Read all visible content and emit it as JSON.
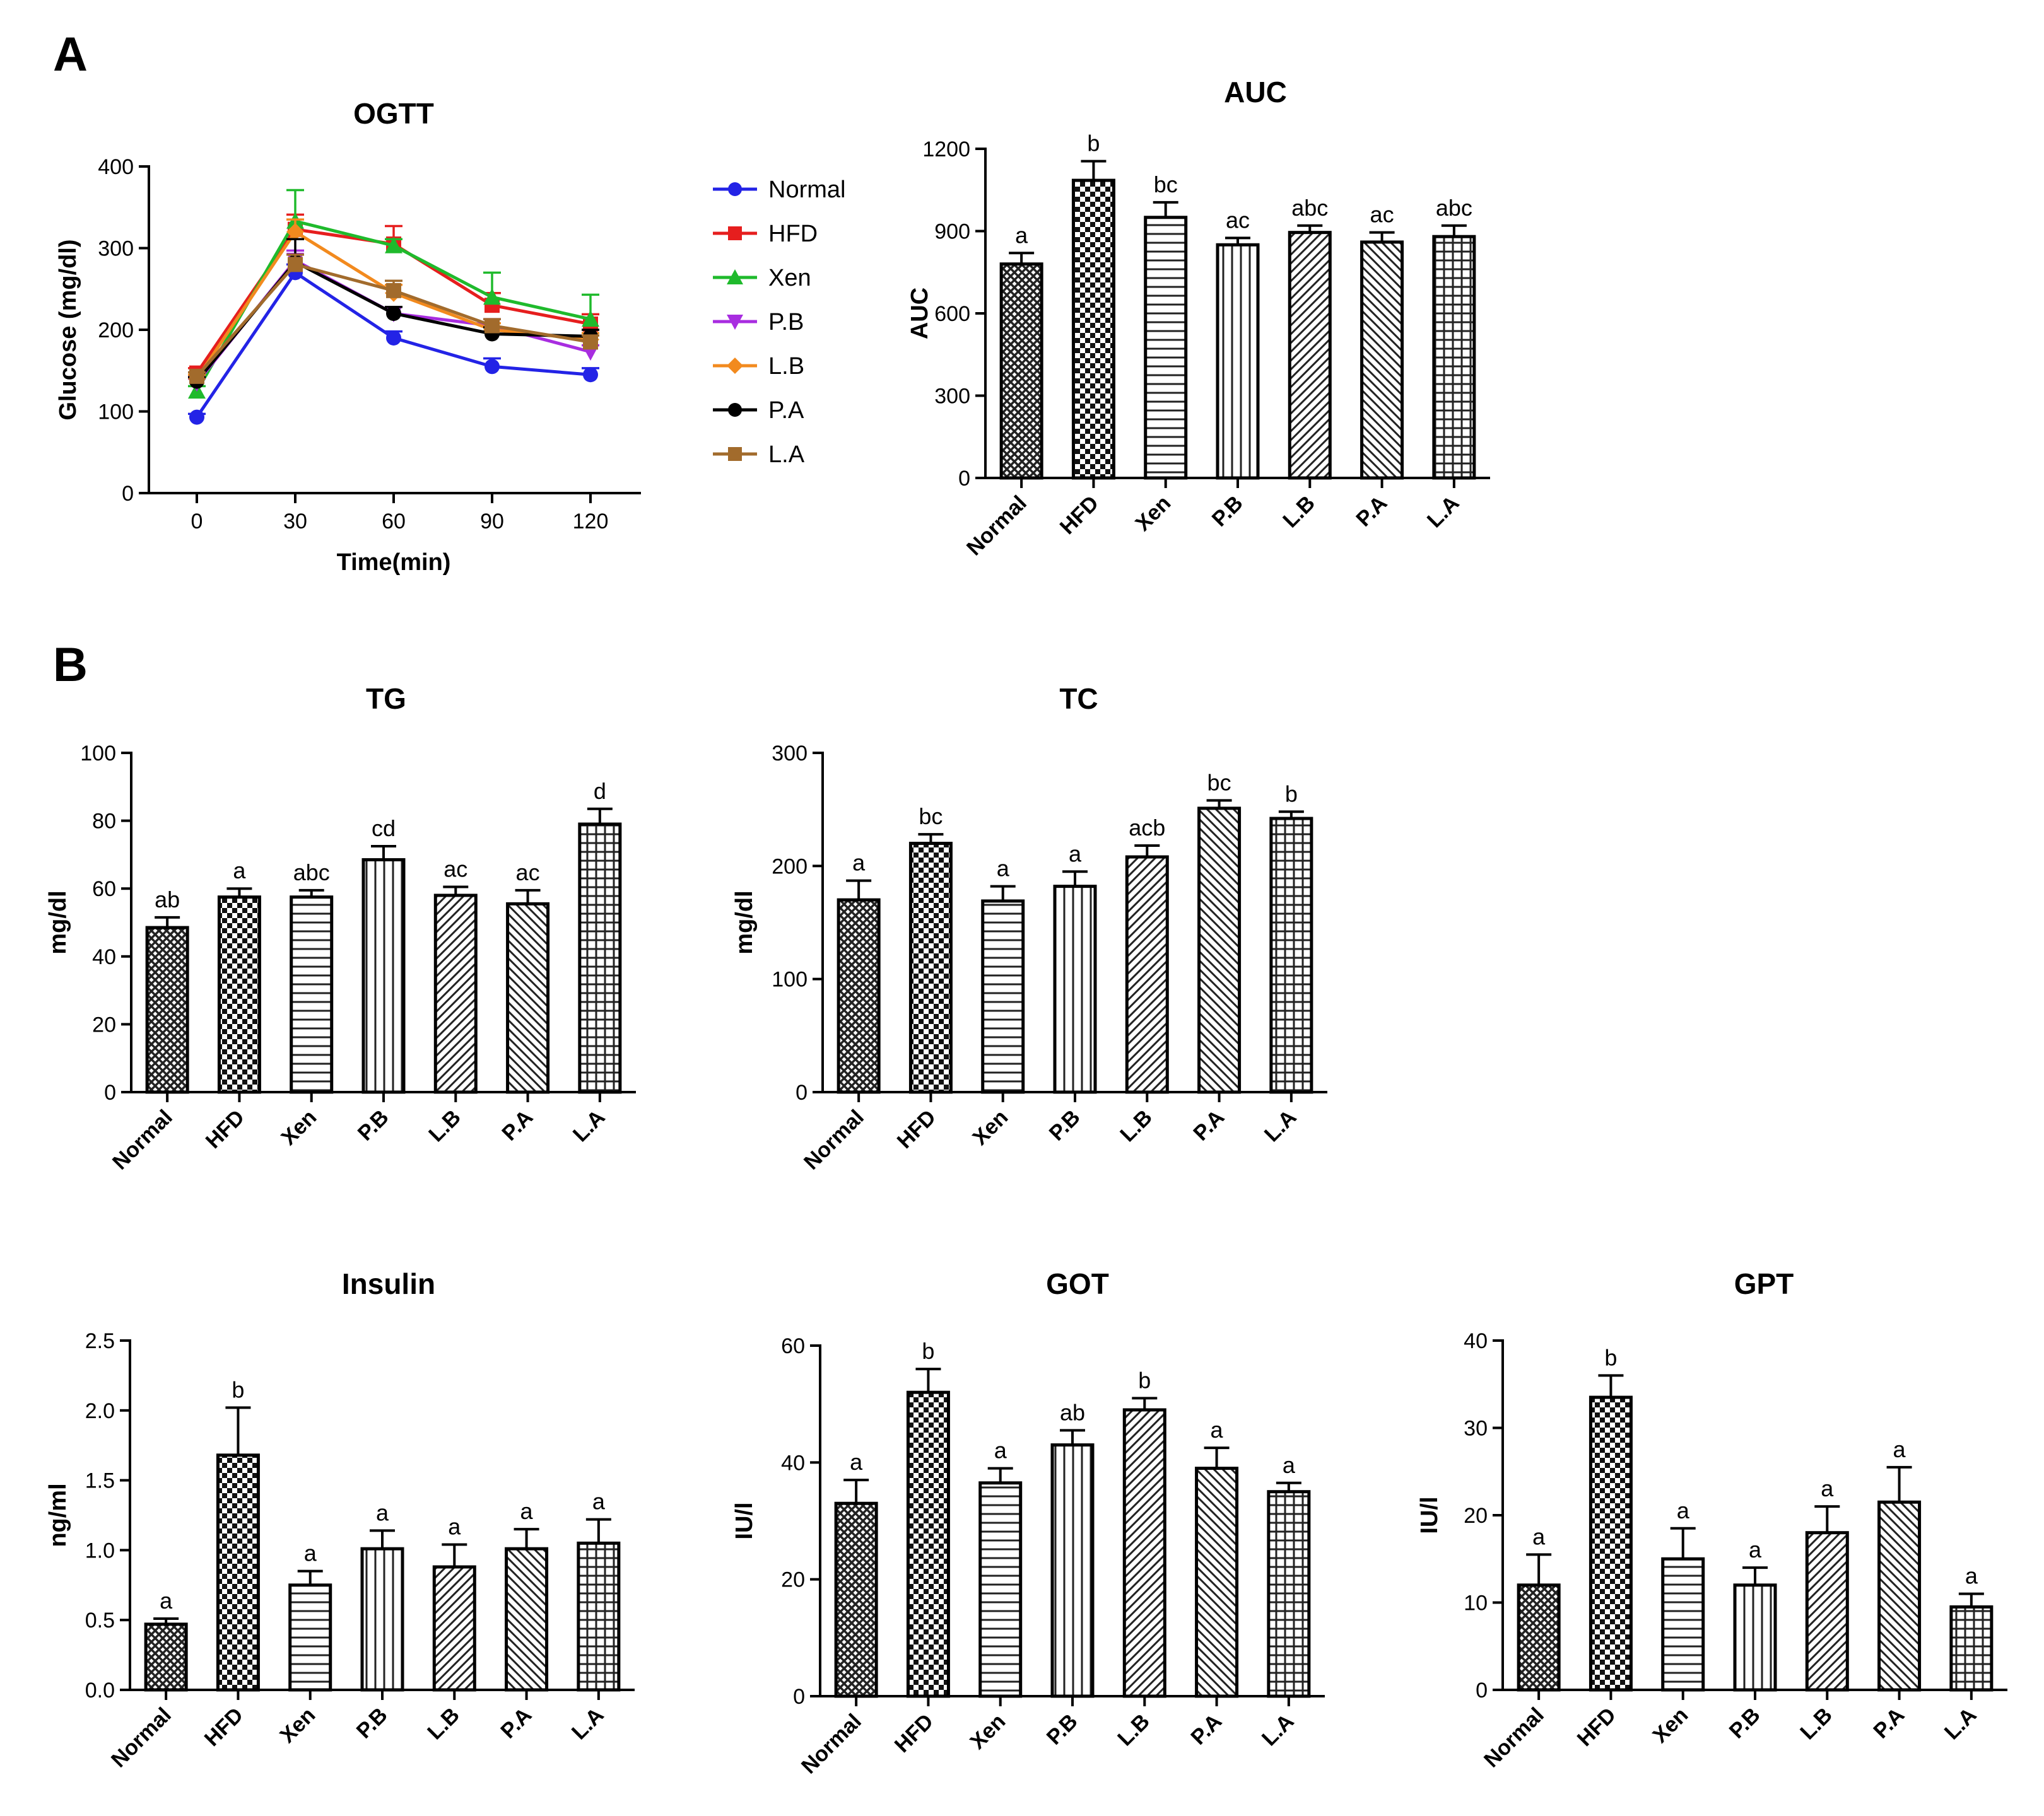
{
  "panel_labels": [
    "A",
    "B"
  ],
  "chart_data": [
    {
      "id": "ogtt",
      "type": "line",
      "title": "OGTT",
      "xlabel": "Time(min)",
      "ylabel": "Glucose (mg/dl)",
      "x": [
        0,
        30,
        60,
        90,
        120
      ],
      "xticks": [
        "0",
        "30",
        "60",
        "90",
        "120"
      ],
      "ylim": [
        0,
        400
      ],
      "yticks": [
        "0",
        "100",
        "200",
        "300",
        "400"
      ],
      "legend_position": "right",
      "series": [
        {
          "name": "Normal",
          "color": "#2323e6",
          "marker": "circle",
          "values": [
            93,
            270,
            190,
            155,
            145
          ],
          "err": [
            4,
            10,
            8,
            10,
            8
          ]
        },
        {
          "name": "HFD",
          "color": "#e61e1e",
          "marker": "square",
          "values": [
            147,
            323,
            305,
            230,
            207
          ],
          "err": [
            6,
            18,
            22,
            15,
            12
          ]
        },
        {
          "name": "Xen",
          "color": "#1fba2c",
          "marker": "triangle-up",
          "values": [
            125,
            333,
            303,
            240,
            213
          ],
          "err": [
            6,
            38,
            8,
            30,
            30
          ]
        },
        {
          "name": "P.B",
          "color": "#a82de0",
          "marker": "triangle-down",
          "values": [
            135,
            285,
            220,
            205,
            173
          ],
          "err": [
            5,
            12,
            8,
            8,
            8
          ]
        },
        {
          "name": "L.B",
          "color": "#f28a1e",
          "marker": "diamond",
          "values": [
            140,
            320,
            245,
            200,
            188
          ],
          "err": [
            5,
            15,
            10,
            8,
            8
          ]
        },
        {
          "name": "P.A",
          "color": "#000000",
          "marker": "circle",
          "values": [
            137,
            283,
            220,
            195,
            192
          ],
          "err": [
            5,
            28,
            8,
            8,
            8
          ]
        },
        {
          "name": "L.A",
          "color": "#a26b2c",
          "marker": "square",
          "values": [
            143,
            280,
            248,
            205,
            185
          ],
          "err": [
            5,
            12,
            12,
            8,
            8
          ]
        }
      ]
    },
    {
      "id": "auc",
      "type": "bar",
      "title": "AUC",
      "xlabel": "",
      "ylabel": "AUC",
      "categories": [
        "Normal",
        "HFD",
        "Xen",
        "P.B",
        "L.B",
        "P.A",
        "L.A"
      ],
      "values": [
        780,
        1085,
        950,
        850,
        895,
        860,
        880
      ],
      "errors": [
        40,
        70,
        55,
        25,
        25,
        35,
        40
      ],
      "letters": [
        "a",
        "b",
        "bc",
        "ac",
        "abc",
        "ac",
        "abc"
      ],
      "ylim": [
        0,
        1200
      ],
      "yticks": [
        "0",
        "300",
        "600",
        "900",
        "1200"
      ]
    },
    {
      "id": "tg",
      "type": "bar",
      "title": "TG",
      "xlabel": "",
      "ylabel": "mg/dl",
      "categories": [
        "Normal",
        "HFD",
        "Xen",
        "P.B",
        "L.B",
        "P.A",
        "L.A"
      ],
      "values": [
        48.5,
        57.5,
        57.5,
        68.5,
        58,
        55.5,
        79
      ],
      "errors": [
        3,
        2.5,
        2,
        4,
        2.5,
        4,
        4.5
      ],
      "letters": [
        "ab",
        "a",
        "abc",
        "cd",
        "ac",
        "ac",
        "d"
      ],
      "ylim": [
        0,
        100
      ],
      "yticks": [
        "0",
        "20",
        "40",
        "60",
        "80",
        "100"
      ]
    },
    {
      "id": "tc",
      "type": "bar",
      "title": "TC",
      "xlabel": "",
      "ylabel": "mg/dl",
      "categories": [
        "Normal",
        "HFD",
        "Xen",
        "P.B",
        "L.B",
        "P.A",
        "L.A"
      ],
      "values": [
        170,
        220,
        169,
        182,
        208,
        251,
        242
      ],
      "errors": [
        17,
        8,
        13,
        13,
        10,
        7,
        6
      ],
      "letters": [
        "a",
        "bc",
        "a",
        "a",
        "acb",
        "bc",
        "b"
      ],
      "ylim": [
        0,
        300
      ],
      "yticks": [
        "0",
        "100",
        "200",
        "300"
      ]
    },
    {
      "id": "insulin",
      "type": "bar",
      "title": "Insulin",
      "xlabel": "",
      "ylabel": "ng/ml",
      "categories": [
        "Normal",
        "HFD",
        "Xen",
        "P.B",
        "L.B",
        "P.A",
        "L.A"
      ],
      "values": [
        0.47,
        1.68,
        0.75,
        1.01,
        0.88,
        1.01,
        1.05
      ],
      "errors": [
        0.04,
        0.34,
        0.1,
        0.13,
        0.16,
        0.14,
        0.17
      ],
      "letters": [
        "a",
        "b",
        "a",
        "a",
        "a",
        "a",
        "a"
      ],
      "ylim": [
        0,
        2.5
      ],
      "yticks": [
        "0.0",
        "0.5",
        "1.0",
        "1.5",
        "2.0",
        "2.5"
      ]
    },
    {
      "id": "got",
      "type": "bar",
      "title": "GOT",
      "xlabel": "",
      "ylabel": "IU/l",
      "categories": [
        "Normal",
        "HFD",
        "Xen",
        "P.B",
        "L.B",
        "P.A",
        "L.A"
      ],
      "values": [
        33,
        52,
        36.5,
        43,
        49,
        39,
        35
      ],
      "errors": [
        4,
        4,
        2.5,
        2.5,
        2,
        3.5,
        1.5
      ],
      "letters": [
        "a",
        "b",
        "a",
        "ab",
        "b",
        "a",
        "a"
      ],
      "ylim": [
        0,
        60
      ],
      "yticks": [
        "0",
        "20",
        "40",
        "60"
      ]
    },
    {
      "id": "gpt",
      "type": "bar",
      "title": "GPT",
      "xlabel": "",
      "ylabel": "IU/l",
      "categories": [
        "Normal",
        "HFD",
        "Xen",
        "P.B",
        "L.B",
        "P.A",
        "L.A"
      ],
      "values": [
        12,
        33.5,
        15,
        12,
        18,
        21.5,
        9.5
      ],
      "errors": [
        3.5,
        2.5,
        3.5,
        2,
        3,
        4,
        1.5
      ],
      "letters": [
        "a",
        "b",
        "a",
        "a",
        "a",
        "a",
        "a"
      ],
      "ylim": [
        0,
        40
      ],
      "yticks": [
        "0",
        "10",
        "20",
        "30",
        "40"
      ]
    }
  ]
}
